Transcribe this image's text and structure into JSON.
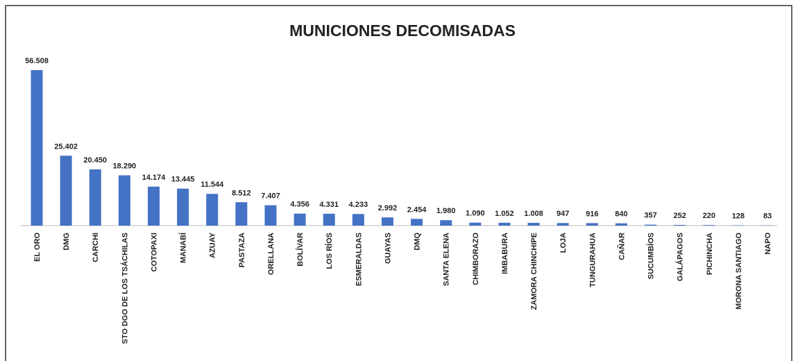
{
  "chart_data": {
    "type": "bar",
    "title": "MUNICIONES DECOMISADAS",
    "categories": [
      "EL ORO",
      "DMG",
      "CARCHI",
      "STO DGO DE LOS TSÁCHILAS",
      "COTOPAXI",
      "MANABÍ",
      "AZUAY",
      "PASTAZA",
      "ORELLANA",
      "BOLÍVAR",
      "LOS RÍOS",
      "ESMERALDAS",
      "GUAYAS",
      "DMQ",
      "SANTA ELENA",
      "CHIMBORAZO",
      "IMBABURA",
      "ZAMORA CHINCHIPE",
      "LOJA",
      "TUNGURAHUA",
      "CAÑAR",
      "SUCUMBÍOS",
      "GALÁPAGOS",
      "PICHINCHA",
      "MORONA SANTIAGO",
      "NAPO"
    ],
    "values": [
      56508,
      25402,
      20450,
      18290,
      14174,
      13445,
      11544,
      8512,
      7407,
      4356,
      4331,
      4233,
      2992,
      2454,
      1980,
      1090,
      1052,
      1008,
      947,
      916,
      840,
      357,
      252,
      220,
      128,
      83
    ],
    "value_labels": [
      "56.508",
      "25.402",
      "20.450",
      "18.290",
      "14.174",
      "13.445",
      "11.544",
      "8.512",
      "7.407",
      "4.356",
      "4.331",
      "4.233",
      "2.992",
      "2.454",
      "1.980",
      "1.090",
      "1.052",
      "1.008",
      "947",
      "916",
      "840",
      "357",
      "252",
      "220",
      "128",
      "83"
    ],
    "color": "#4472c4"
  }
}
